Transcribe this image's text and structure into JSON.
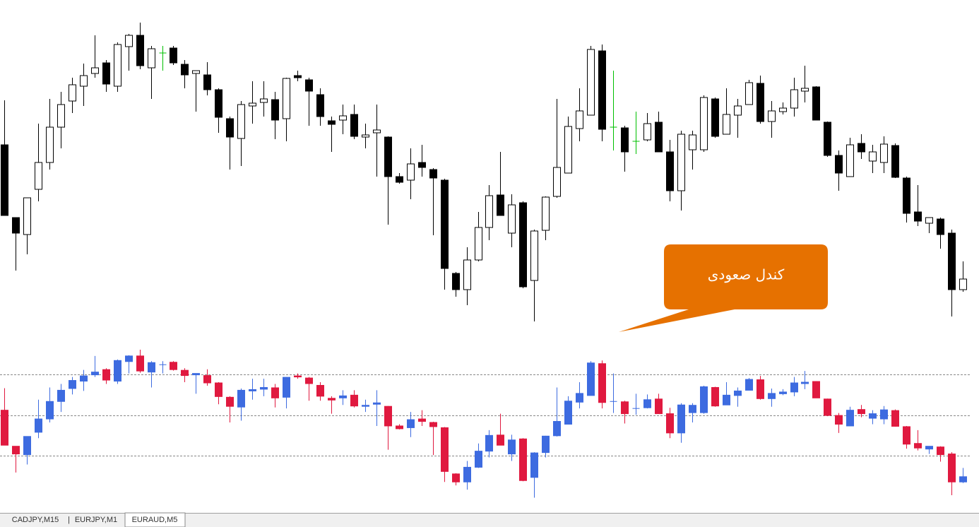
{
  "chart_data": [
    {
      "type": "candlestick",
      "ylim": [
        40,
        480
      ],
      "up_color": "#ffffff",
      "down_color": "#000000",
      "doji_color": "#00c000",
      "wick_color": "#000000",
      "ohlc": [
        [
          295,
          358,
          195,
          195
        ],
        [
          192,
          192,
          117,
          170
        ],
        [
          168,
          220,
          140,
          220
        ],
        [
          232,
          325,
          215,
          270
        ],
        [
          270,
          360,
          260,
          320
        ],
        [
          320,
          370,
          290,
          352
        ],
        [
          357,
          390,
          340,
          380
        ],
        [
          378,
          410,
          350,
          393
        ],
        [
          396,
          450,
          390,
          404
        ],
        [
          411,
          415,
          370,
          381
        ],
        [
          378,
          440,
          370,
          437
        ],
        [
          434,
          452,
          400,
          450
        ],
        [
          450,
          468,
          402,
          407
        ],
        [
          404,
          435,
          360,
          431
        ],
        [
          425,
          435,
          400,
          425
        ],
        [
          432,
          435,
          408,
          411
        ],
        [
          409,
          415,
          375,
          394
        ],
        [
          396,
          400,
          342,
          400
        ],
        [
          394,
          412,
          365,
          373
        ],
        [
          373,
          375,
          312,
          334
        ],
        [
          332,
          335,
          260,
          306
        ],
        [
          304,
          357,
          265,
          352
        ],
        [
          350,
          385,
          325,
          354
        ],
        [
          355,
          385,
          335,
          360
        ],
        [
          359,
          370,
          303,
          330
        ],
        [
          332,
          390,
          300,
          389
        ],
        [
          393,
          400,
          385,
          390
        ],
        [
          387,
          390,
          322,
          371
        ],
        [
          366,
          375,
          322,
          335
        ],
        [
          329,
          335,
          285,
          324
        ],
        [
          330,
          352,
          310,
          336
        ],
        [
          338,
          352,
          303,
          307
        ],
        [
          306,
          325,
          290,
          309
        ],
        [
          312,
          352,
          250,
          316
        ],
        [
          306,
          307,
          182,
          250
        ],
        [
          250,
          255,
          240,
          242
        ],
        [
          245,
          290,
          218,
          268
        ],
        [
          270,
          295,
          250,
          263
        ],
        [
          260,
          262,
          167,
          248
        ],
        [
          245,
          247,
          90,
          120
        ],
        [
          113,
          115,
          80,
          90
        ],
        [
          90,
          150,
          68,
          132
        ],
        [
          132,
          200,
          130,
          178
        ],
        [
          178,
          238,
          160,
          223
        ],
        [
          224,
          285,
          195,
          195
        ],
        [
          170,
          225,
          150,
          210
        ],
        [
          213,
          215,
          92,
          94
        ],
        [
          103,
          175,
          45,
          173
        ],
        [
          174,
          222,
          160,
          221
        ],
        [
          222,
          360,
          220,
          263
        ],
        [
          255,
          335,
          255,
          321
        ],
        [
          318,
          375,
          300,
          343
        ],
        [
          337,
          435,
          337,
          430
        ],
        [
          428,
          437,
          300,
          317
        ],
        [
          320,
          400,
          287,
          320
        ],
        [
          319,
          322,
          257,
          285
        ],
        [
          300,
          342,
          282,
          300
        ],
        [
          302,
          340,
          300,
          325
        ],
        [
          327,
          342,
          285,
          285
        ],
        [
          285,
          302,
          215,
          230
        ],
        [
          230,
          315,
          202,
          310
        ],
        [
          288,
          315,
          260,
          309
        ],
        [
          288,
          365,
          285,
          362
        ],
        [
          360,
          362,
          305,
          307
        ],
        [
          310,
          375,
          310,
          338
        ],
        [
          337,
          360,
          305,
          350
        ],
        [
          352,
          387,
          352,
          383
        ],
        [
          382,
          393,
          325,
          328
        ],
        [
          328,
          357,
          305,
          343
        ],
        [
          342,
          355,
          338,
          347
        ],
        [
          347,
          390,
          335,
          373
        ],
        [
          371,
          407,
          355,
          375
        ],
        [
          377,
          378,
          330,
          330
        ],
        [
          327,
          328,
          278,
          280
        ],
        [
          280,
          287,
          230,
          255
        ],
        [
          250,
          305,
          250,
          295
        ],
        [
          297,
          310,
          275,
          285
        ],
        [
          272,
          295,
          255,
          285
        ],
        [
          270,
          307,
          255,
          296
        ],
        [
          294,
          297,
          248,
          249
        ],
        [
          248,
          250,
          185,
          198
        ],
        [
          200,
          238,
          180,
          187
        ],
        [
          184,
          192,
          170,
          192
        ],
        [
          190,
          192,
          148,
          168
        ],
        [
          170,
          175,
          52,
          90
        ],
        [
          90,
          130,
          87,
          105
        ]
      ]
    },
    {
      "type": "candlestick",
      "ylim": [
        40,
        480
      ],
      "up_color": "#3d6be0",
      "down_color": "#e0193f",
      "doji_color": "#3d6be0",
      "levels": [
        397,
        280,
        165
      ]
    }
  ],
  "tabs": [
    "CADJPY,M15",
    "EURJPY,M1",
    "EURAUD,M5"
  ],
  "annotation": "کندل صعودی"
}
